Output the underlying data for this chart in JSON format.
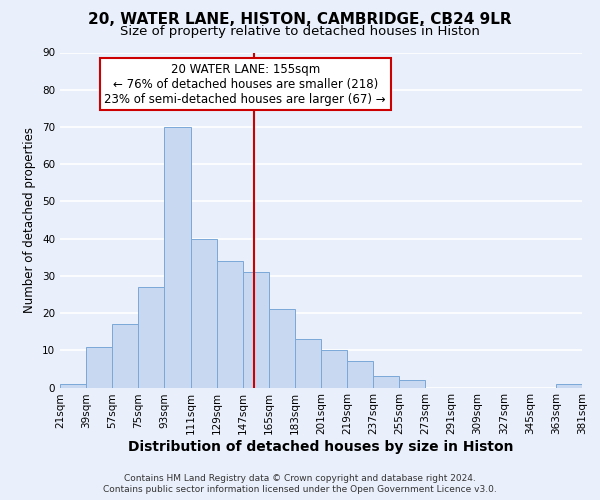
{
  "title": "20, WATER LANE, HISTON, CAMBRIDGE, CB24 9LR",
  "subtitle": "Size of property relative to detached houses in Histon",
  "xlabel": "Distribution of detached houses by size in Histon",
  "ylabel": "Number of detached properties",
  "footnote1": "Contains HM Land Registry data © Crown copyright and database right 2024.",
  "footnote2": "Contains public sector information licensed under the Open Government Licence v3.0.",
  "bin_edges": [
    21,
    39,
    57,
    75,
    93,
    111,
    129,
    147,
    165,
    183,
    201,
    219,
    237,
    255,
    273,
    291,
    309,
    327,
    345,
    363,
    381
  ],
  "bar_heights": [
    1,
    11,
    17,
    27,
    70,
    40,
    34,
    31,
    21,
    13,
    10,
    7,
    3,
    2,
    0,
    0,
    0,
    0,
    0,
    1
  ],
  "bar_color": "#c8d8f0",
  "bar_edge_color": "#7aa8d8",
  "property_size": 155,
  "vline_color": "#cc0000",
  "annotation_line1": "20 WATER LANE: 155sqm",
  "annotation_line2": "← 76% of detached houses are smaller (218)",
  "annotation_line3": "23% of semi-detached houses are larger (67) →",
  "annotation_box_color": "#ffffff",
  "annotation_box_edge_color": "#cc0000",
  "ylim": [
    0,
    90
  ],
  "yticks": [
    0,
    10,
    20,
    30,
    40,
    50,
    60,
    70,
    80,
    90
  ],
  "background_color": "#eaf0fb",
  "grid_color": "#ffffff",
  "title_fontsize": 11,
  "subtitle_fontsize": 9.5,
  "xlabel_fontsize": 10,
  "ylabel_fontsize": 8.5,
  "tick_fontsize": 7.5,
  "annotation_fontsize": 8.5,
  "footnote_fontsize": 6.5
}
